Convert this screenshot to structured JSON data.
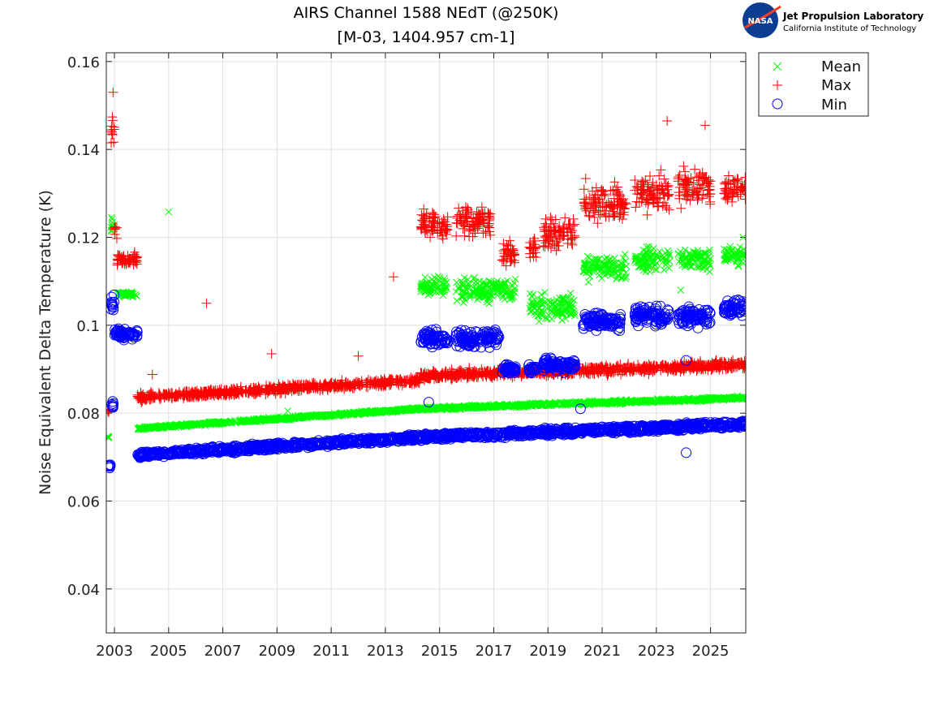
{
  "logo": {
    "org": "Jet Propulsion Laboratory",
    "sub": "California Institute of Technology",
    "badge": "NASA"
  },
  "chart_data": {
    "type": "scatter",
    "title": "AIRS Channel 1588 NEdT (@250K)",
    "subtitle": "[M-03, 1404.957 cm-1]",
    "xlabel": "",
    "ylabel": "Noise Equivalent Delta Temperature (K)",
    "xlim": [
      2002.7,
      2026.3
    ],
    "ylim": [
      0.03,
      0.162
    ],
    "xticks": [
      2003,
      2005,
      2007,
      2009,
      2011,
      2013,
      2015,
      2017,
      2019,
      2021,
      2023,
      2025
    ],
    "yticks": [
      0.04,
      0.06,
      0.08,
      0.1,
      0.12,
      0.14,
      0.16
    ],
    "ytick_labels": [
      "0.04",
      "0.06",
      "0.08",
      "0.1",
      "0.12",
      "0.14",
      "0.16"
    ],
    "grid": true,
    "legend_position": "outside-top-right",
    "series": [
      {
        "name": "Mean",
        "marker": "x",
        "color": "#00ff00",
        "segments": [
          {
            "x": [
              2002.75,
              2002.8
            ],
            "y": [
              0.0745,
              0.0745
            ],
            "spread": 0.0003
          },
          {
            "x": [
              2002.85,
              2003.0
            ],
            "y": [
              0.123,
              0.123
            ],
            "spread": 0.0035
          },
          {
            "x": [
              2003.1,
              2003.85
            ],
            "y": [
              0.107,
              0.107
            ],
            "spread": 0.0008
          },
          {
            "x": [
              2003.85,
              2014.3
            ],
            "y": [
              0.0765,
              0.081
            ],
            "spread": 0.0005
          },
          {
            "x": [
              2014.3,
              2026.3
            ],
            "y": [
              0.081,
              0.0835
            ],
            "spread": 0.0006
          },
          {
            "x": [
              2014.3,
              2015.3
            ],
            "y": [
              0.109,
              0.109
            ],
            "spread": 0.003
          },
          {
            "x": [
              2015.6,
              2017.8
            ],
            "y": [
              0.108,
              0.108
            ],
            "spread": 0.004
          },
          {
            "x": [
              2018.3,
              2020.0
            ],
            "y": [
              0.104,
              0.104
            ],
            "spread": 0.004
          },
          {
            "x": [
              2020.3,
              2021.9
            ],
            "y": [
              0.113,
              0.113
            ],
            "spread": 0.004
          },
          {
            "x": [
              2022.2,
              2023.5
            ],
            "y": [
              0.115,
              0.115
            ],
            "spread": 0.004
          },
          {
            "x": [
              2023.8,
              2025.0
            ],
            "y": [
              0.115,
              0.115
            ],
            "spread": 0.004
          },
          {
            "x": [
              2025.5,
              2026.3
            ],
            "y": [
              0.116,
              0.116
            ],
            "spread": 0.003
          }
        ],
        "outliers": [
          [
            2005.0,
            0.1258
          ],
          [
            2009.4,
            0.0805
          ],
          [
            2023.9,
            0.108
          ],
          [
            2026.2,
            0.12
          ]
        ]
      },
      {
        "name": "Max",
        "marker": "+",
        "color": "#ff0000",
        "segments": [
          {
            "x": [
              2002.75,
              2002.82
            ],
            "y": [
              0.0805,
              0.0805
            ],
            "spread": 0.001
          },
          {
            "x": [
              2002.85,
              2003.0
            ],
            "y": [
              0.144,
              0.144
            ],
            "spread": 0.006
          },
          {
            "x": [
              2003.0,
              2003.1
            ],
            "y": [
              0.121,
              0.121
            ],
            "spread": 0.003
          },
          {
            "x": [
              2003.1,
              2003.85
            ],
            "y": [
              0.115,
              0.115
            ],
            "spread": 0.002
          },
          {
            "x": [
              2003.85,
              2014.3
            ],
            "y": [
              0.0835,
              0.0875
            ],
            "spread": 0.0013
          },
          {
            "x": [
              2014.3,
              2026.3
            ],
            "y": [
              0.0885,
              0.091
            ],
            "spread": 0.0015
          },
          {
            "x": [
              2014.3,
              2015.3
            ],
            "y": [
              0.123,
              0.123
            ],
            "spread": 0.005
          },
          {
            "x": [
              2015.6,
              2016.9
            ],
            "y": [
              0.124,
              0.124
            ],
            "spread": 0.005
          },
          {
            "x": [
              2017.3,
              2017.8
            ],
            "y": [
              0.116,
              0.116
            ],
            "spread": 0.004
          },
          {
            "x": [
              2018.3,
              2018.6
            ],
            "y": [
              0.118,
              0.118
            ],
            "spread": 0.004
          },
          {
            "x": [
              2018.8,
              2020.0
            ],
            "y": [
              0.121,
              0.121
            ],
            "spread": 0.005
          },
          {
            "x": [
              2020.3,
              2021.9
            ],
            "y": [
              0.128,
              0.128
            ],
            "spread": 0.006
          },
          {
            "x": [
              2022.2,
              2023.5
            ],
            "y": [
              0.13,
              0.13
            ],
            "spread": 0.006
          },
          {
            "x": [
              2023.8,
              2025.0
            ],
            "y": [
              0.131,
              0.131
            ],
            "spread": 0.006
          },
          {
            "x": [
              2025.5,
              2026.3
            ],
            "y": [
              0.131,
              0.131
            ],
            "spread": 0.004
          }
        ],
        "outliers": [
          [
            2006.4,
            0.105
          ],
          [
            2013.3,
            0.111
          ],
          [
            2008.8,
            0.0935
          ],
          [
            2012.0,
            0.093
          ],
          [
            2004.4,
            0.0888
          ],
          [
            2002.95,
            0.153
          ],
          [
            2023.4,
            0.1465
          ],
          [
            2024.8,
            0.1455
          ]
        ]
      },
      {
        "name": "Min",
        "marker": "o",
        "color": "#0000ff",
        "segments": [
          {
            "x": [
              2002.75,
              2002.85
            ],
            "y": [
              0.068,
              0.068
            ],
            "spread": 0.0012
          },
          {
            "x": [
              2002.9,
              2003.0
            ],
            "y": [
              0.0815,
              0.0815
            ],
            "spread": 0.0015
          },
          {
            "x": [
              2002.85,
              2003.0
            ],
            "y": [
              0.105,
              0.105
            ],
            "spread": 0.003
          },
          {
            "x": [
              2003.0,
              2003.85
            ],
            "y": [
              0.098,
              0.098
            ],
            "spread": 0.0015
          },
          {
            "x": [
              2003.85,
              2014.3
            ],
            "y": [
              0.0705,
              0.0745
            ],
            "spread": 0.001
          },
          {
            "x": [
              2014.3,
              2026.3
            ],
            "y": [
              0.0745,
              0.0775
            ],
            "spread": 0.0011
          },
          {
            "x": [
              2014.3,
              2015.3
            ],
            "y": [
              0.097,
              0.097
            ],
            "spread": 0.0025
          },
          {
            "x": [
              2015.6,
              2017.2
            ],
            "y": [
              0.097,
              0.097
            ],
            "spread": 0.003
          },
          {
            "x": [
              2017.3,
              2017.8
            ],
            "y": [
              0.09,
              0.09
            ],
            "spread": 0.0015
          },
          {
            "x": [
              2018.3,
              2018.6
            ],
            "y": [
              0.09,
              0.09
            ],
            "spread": 0.0015
          },
          {
            "x": [
              2018.8,
              2020.0
            ],
            "y": [
              0.091,
              0.091
            ],
            "spread": 0.002
          },
          {
            "x": [
              2020.3,
              2021.7
            ],
            "y": [
              0.101,
              0.101
            ],
            "spread": 0.003
          },
          {
            "x": [
              2022.2,
              2023.5
            ],
            "y": [
              0.102,
              0.102
            ],
            "spread": 0.003
          },
          {
            "x": [
              2023.8,
              2025.0
            ],
            "y": [
              0.102,
              0.102
            ],
            "spread": 0.003
          },
          {
            "x": [
              2025.5,
              2026.3
            ],
            "y": [
              0.104,
              0.104
            ],
            "spread": 0.0025
          }
        ],
        "outliers": [
          [
            2014.6,
            0.0825
          ],
          [
            2020.2,
            0.081
          ],
          [
            2024.1,
            0.071
          ],
          [
            2024.1,
            0.092
          ]
        ]
      }
    ]
  }
}
